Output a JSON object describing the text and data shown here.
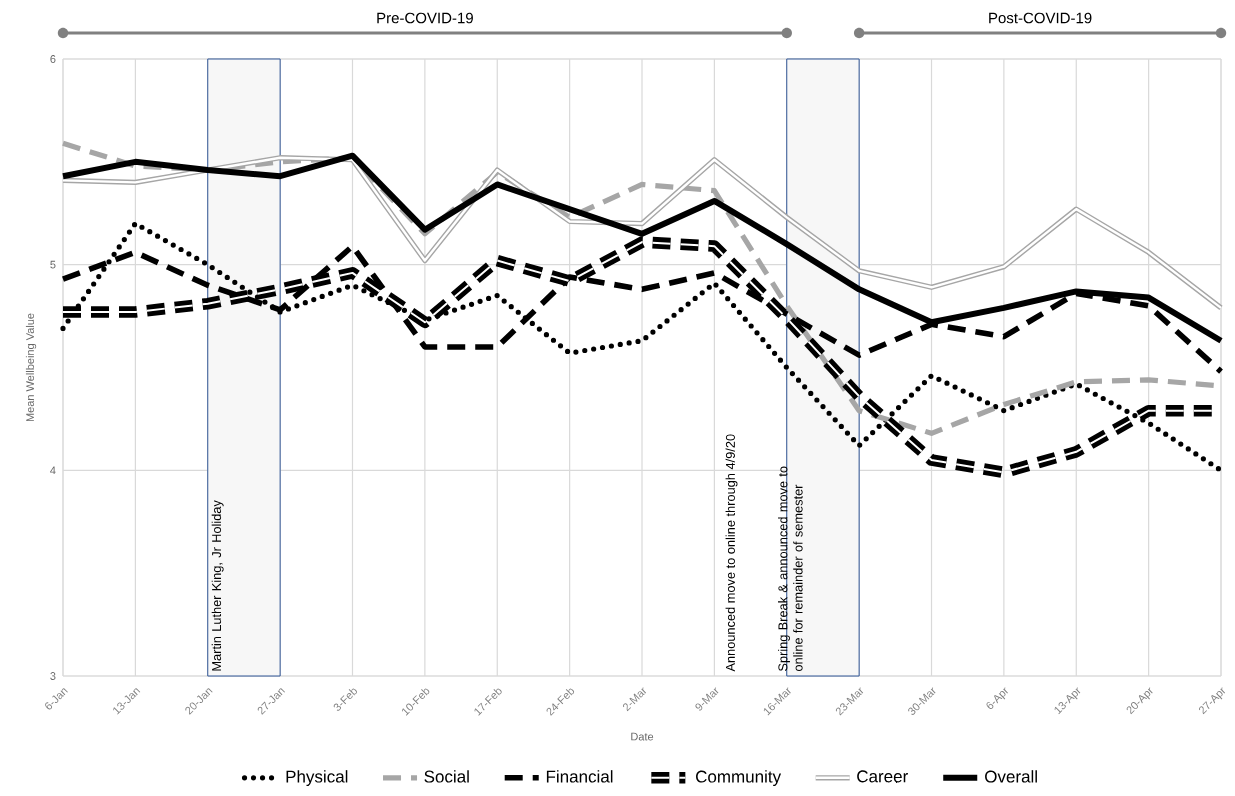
{
  "chart_data": {
    "type": "line",
    "xlabel": "Date",
    "ylabel": "Mean Wellbeing Value",
    "categories": [
      "6-Jan",
      "13-Jan",
      "20-Jan",
      "27-Jan",
      "3-Feb",
      "10-Feb",
      "17-Feb",
      "24-Feb",
      "2-Mar",
      "9-Mar",
      "16-Mar",
      "23-Mar",
      "30-Mar",
      "6-Apr",
      "13-Apr",
      "20-Apr",
      "27-Apr"
    ],
    "series": [
      {
        "name": "Physical",
        "color": "#000000",
        "line_style": "dotted",
        "values": [
          4.69,
          5.2,
          5.0,
          4.77,
          4.9,
          4.73,
          4.85,
          4.57,
          4.63,
          4.91,
          4.5,
          4.12,
          4.46,
          4.29,
          4.42,
          4.23,
          4.0
        ]
      },
      {
        "name": "Social",
        "color": "#a6a6a6",
        "line_style": "dashed",
        "values": [
          5.59,
          5.48,
          5.46,
          5.5,
          5.52,
          5.15,
          5.45,
          5.23,
          5.39,
          5.36,
          4.8,
          4.29,
          4.18,
          4.32,
          4.43,
          4.44,
          4.41
        ]
      },
      {
        "name": "Financial",
        "color": "#000000",
        "line_style": "dashed",
        "values": [
          4.93,
          5.06,
          4.9,
          4.78,
          5.09,
          4.6,
          4.6,
          4.94,
          4.88,
          4.96,
          4.76,
          4.56,
          4.71,
          4.65,
          4.86,
          4.8,
          4.48
        ]
      },
      {
        "name": "Community",
        "color": "#000000",
        "line_style": "dashed",
        "values": [
          4.77,
          4.77,
          4.81,
          4.88,
          4.96,
          4.72,
          5.02,
          4.92,
          5.11,
          5.09,
          4.74,
          4.36,
          4.05,
          3.99,
          4.09,
          4.29,
          4.29
        ]
      },
      {
        "name": "Career",
        "color": "#a6a6a6",
        "line_style": "solid",
        "values": [
          5.41,
          5.4,
          5.46,
          5.52,
          5.51,
          5.02,
          5.46,
          5.21,
          5.2,
          5.51,
          5.23,
          4.97,
          4.89,
          4.99,
          5.27,
          5.06,
          4.79
        ]
      },
      {
        "name": "Overall",
        "color": "#000000",
        "line_style": "solid",
        "values": [
          5.43,
          5.5,
          5.46,
          5.43,
          5.53,
          5.17,
          5.39,
          5.27,
          5.15,
          5.31,
          5.1,
          4.88,
          4.72,
          4.79,
          4.87,
          4.84,
          4.63
        ]
      }
    ],
    "ylim": [
      3,
      6
    ],
    "yticks": [
      3,
      4,
      5,
      6
    ],
    "grid": true,
    "legend": "bottom",
    "marker": "none",
    "bands": [
      {
        "axis": "x",
        "from": "20-Jan",
        "to": "27-Jan",
        "label": "Martin Luther King, Jr Holiday",
        "color": "#f7f7f7"
      },
      {
        "axis": "x",
        "from": "16-Mar",
        "to": "23-Mar",
        "label": "Spring Break & announced move to online for remainder of semester",
        "color": "#f7f7f7"
      }
    ],
    "annotations": [
      "Pre-COVID-19",
      "Post-COVID-19",
      "Announced move to online through 4/9/20"
    ]
  }
}
